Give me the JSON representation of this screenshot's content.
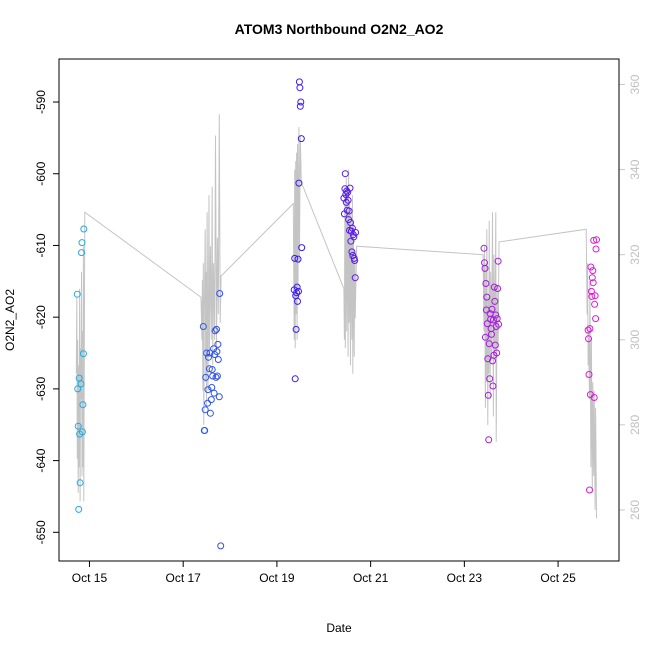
{
  "chart_data": {
    "type": "scatter",
    "title": "ATOM3 Northbound O2N2_AO2",
    "xlabel": "Date",
    "ylabel": "O2N2_AO2",
    "ylabel_right": "",
    "x_tick_labels": [
      "Oct 15",
      "Oct 17",
      "Oct 19",
      "Oct 21",
      "Oct 23",
      "Oct 25"
    ],
    "x_tick_days": [
      15,
      17,
      19,
      21,
      23,
      25
    ],
    "xlim_days": [
      14.35,
      26.3
    ],
    "y_ticks": [
      -590,
      -600,
      -610,
      -620,
      -630,
      -640,
      -650
    ],
    "ylim": [
      -654,
      -584
    ],
    "y2_ticks": [
      260,
      280,
      300,
      320,
      340,
      360
    ],
    "y2lim": [
      248,
      366
    ],
    "colors": {
      "points_start": "#1fb0e6",
      "points_mid": "#3a1cf0",
      "points_end": "#e21ad8",
      "secondary_line": "#c4c4c4",
      "secondary_axis": "#c8c8c8"
    },
    "series": [
      {
        "name": "O2N2_AO2",
        "axis": "left",
        "kind": "points",
        "points": [
          [
            14.74,
            -616.8
          ],
          [
            14.75,
            -630.0
          ],
          [
            14.76,
            -635.2
          ],
          [
            14.77,
            -646.8
          ],
          [
            14.78,
            -628.5
          ],
          [
            14.79,
            -636.3
          ],
          [
            14.8,
            -643.1
          ],
          [
            14.82,
            -629.3
          ],
          [
            14.83,
            -611.0
          ],
          [
            14.84,
            -609.6
          ],
          [
            14.85,
            -636.0
          ],
          [
            14.86,
            -632.2
          ],
          [
            14.87,
            -625.1
          ],
          [
            14.88,
            -607.7
          ],
          [
            17.43,
            -621.3
          ],
          [
            17.45,
            -635.8
          ],
          [
            17.46,
            -635.8
          ],
          [
            17.47,
            -632.9
          ],
          [
            17.48,
            -628.4
          ],
          [
            17.5,
            -625.0
          ],
          [
            17.52,
            -632.0
          ],
          [
            17.53,
            -630.1
          ],
          [
            17.54,
            -625.6
          ],
          [
            17.56,
            -627.2
          ],
          [
            17.57,
            -625.0
          ],
          [
            17.58,
            -633.4
          ],
          [
            17.6,
            -631.5
          ],
          [
            17.61,
            -629.8
          ],
          [
            17.62,
            -627.3
          ],
          [
            17.63,
            -628.2
          ],
          [
            17.65,
            -624.4
          ],
          [
            17.66,
            -630.6
          ],
          [
            17.67,
            -625.2
          ],
          [
            17.68,
            -621.9
          ],
          [
            17.7,
            -628.4
          ],
          [
            17.71,
            -621.7
          ],
          [
            17.72,
            -624.8
          ],
          [
            17.73,
            -628.2
          ],
          [
            17.74,
            -623.8
          ],
          [
            17.75,
            -625.9
          ],
          [
            17.77,
            -631.1
          ],
          [
            17.78,
            -616.7
          ],
          [
            17.8,
            -651.9
          ],
          [
            19.37,
            -616.2
          ],
          [
            19.38,
            -611.8
          ],
          [
            19.39,
            -628.6
          ],
          [
            19.4,
            -617.0
          ],
          [
            19.41,
            -621.7
          ],
          [
            19.42,
            -616.6
          ],
          [
            19.43,
            -615.8
          ],
          [
            19.44,
            -617.8
          ],
          [
            19.45,
            -611.9
          ],
          [
            19.46,
            -616.4
          ],
          [
            19.47,
            -601.3
          ],
          [
            19.48,
            -587.2
          ],
          [
            19.49,
            -588.0
          ],
          [
            19.5,
            -590.6
          ],
          [
            19.51,
            -590.0
          ],
          [
            19.52,
            -595.1
          ],
          [
            19.53,
            -610.3
          ],
          [
            20.43,
            -603.4
          ],
          [
            20.44,
            -605.6
          ],
          [
            20.45,
            -602.1
          ],
          [
            20.46,
            -600.0
          ],
          [
            20.47,
            -602.9
          ],
          [
            20.48,
            -604.0
          ],
          [
            20.49,
            -602.4
          ],
          [
            20.5,
            -605.1
          ],
          [
            20.51,
            -602.6
          ],
          [
            20.52,
            -603.7
          ],
          [
            20.53,
            -606.4
          ],
          [
            20.54,
            -605.2
          ],
          [
            20.55,
            -607.9
          ],
          [
            20.56,
            -602.0
          ],
          [
            20.57,
            -606.8
          ],
          [
            20.58,
            -609.4
          ],
          [
            20.59,
            -608.0
          ],
          [
            20.6,
            -610.9
          ],
          [
            20.61,
            -607.6
          ],
          [
            20.62,
            -611.4
          ],
          [
            20.63,
            -608.5
          ],
          [
            20.64,
            -608.8
          ],
          [
            20.65,
            -611.8
          ],
          [
            20.66,
            -612.1
          ],
          [
            20.67,
            -614.5
          ],
          [
            20.68,
            -608.2
          ],
          [
            23.42,
            -610.4
          ],
          [
            23.43,
            -612.4
          ],
          [
            23.44,
            -613.2
          ],
          [
            23.45,
            -622.8
          ],
          [
            23.46,
            -615.3
          ],
          [
            23.47,
            -619.0
          ],
          [
            23.48,
            -617.2
          ],
          [
            23.49,
            -620.9
          ],
          [
            23.5,
            -625.8
          ],
          [
            23.51,
            -630.9
          ],
          [
            23.52,
            -637.1
          ],
          [
            23.53,
            -623.7
          ],
          [
            23.54,
            -628.6
          ],
          [
            23.55,
            -619.5
          ],
          [
            23.56,
            -620.3
          ],
          [
            23.57,
            -621.6
          ],
          [
            23.58,
            -622.4
          ],
          [
            23.59,
            -618.9
          ],
          [
            23.6,
            -626.1
          ],
          [
            23.61,
            -629.6
          ],
          [
            23.62,
            -620.4
          ],
          [
            23.63,
            -625.3
          ],
          [
            23.64,
            -615.8
          ],
          [
            23.65,
            -617.8
          ],
          [
            23.66,
            -623.9
          ],
          [
            23.67,
            -619.7
          ],
          [
            23.68,
            -621.3
          ],
          [
            23.69,
            -625.0
          ],
          [
            23.7,
            -620.2
          ],
          [
            23.71,
            -616.0
          ],
          [
            23.72,
            -612.2
          ],
          [
            23.73,
            -621.0
          ],
          [
            25.64,
            -621.8
          ],
          [
            25.65,
            -623.0
          ],
          [
            25.66,
            -628.0
          ],
          [
            25.67,
            -644.1
          ],
          [
            25.68,
            -621.6
          ],
          [
            25.69,
            -630.8
          ],
          [
            25.7,
            -613.0
          ],
          [
            25.71,
            -616.4
          ],
          [
            25.72,
            -617.1
          ],
          [
            25.73,
            -614.5
          ],
          [
            25.74,
            -613.5
          ],
          [
            25.75,
            -615.2
          ],
          [
            25.76,
            -609.3
          ],
          [
            25.77,
            -631.2
          ],
          [
            25.78,
            -618.2
          ],
          [
            25.79,
            -617.0
          ],
          [
            25.8,
            -620.2
          ],
          [
            25.81,
            -610.5
          ],
          [
            25.82,
            -609.2
          ]
        ]
      },
      {
        "name": "secondary (gray, right axis)",
        "axis": "right",
        "kind": "line",
        "points": [
          [
            14.72,
            292
          ],
          [
            14.73,
            310
          ],
          [
            14.74,
            272
          ],
          [
            14.75,
            300
          ],
          [
            14.76,
            264
          ],
          [
            14.77,
            294
          ],
          [
            14.78,
            270
          ],
          [
            14.79,
            312
          ],
          [
            14.8,
            262
          ],
          [
            14.81,
            298
          ],
          [
            14.82,
            286
          ],
          [
            14.83,
            316
          ],
          [
            14.84,
            268
          ],
          [
            14.85,
            302
          ],
          [
            14.86,
            270
          ],
          [
            14.87,
            322
          ],
          [
            14.88,
            262
          ],
          [
            14.9,
            330
          ],
          [
            17.38,
            310
          ],
          [
            17.4,
            300
          ],
          [
            17.41,
            314
          ],
          [
            17.42,
            288
          ],
          [
            17.43,
            318
          ],
          [
            17.44,
            280
          ],
          [
            17.45,
            306
          ],
          [
            17.47,
            326
          ],
          [
            17.48,
            290
          ],
          [
            17.49,
            316
          ],
          [
            17.5,
            284
          ],
          [
            17.51,
            330
          ],
          [
            17.53,
            288
          ],
          [
            17.55,
            334
          ],
          [
            17.56,
            296
          ],
          [
            17.58,
            322
          ],
          [
            17.6,
            300
          ],
          [
            17.62,
            336
          ],
          [
            17.63,
            294
          ],
          [
            17.65,
            318
          ],
          [
            17.67,
            300
          ],
          [
            17.69,
            348
          ],
          [
            17.71,
            298
          ],
          [
            17.73,
            324
          ],
          [
            17.75,
            306
          ],
          [
            17.77,
            353
          ],
          [
            17.79,
            304
          ],
          [
            17.81,
            315
          ],
          [
            19.35,
            332
          ],
          [
            19.37,
            300
          ],
          [
            19.38,
            340
          ],
          [
            19.39,
            298
          ],
          [
            19.4,
            342
          ],
          [
            19.41,
            306
          ],
          [
            19.42,
            344
          ],
          [
            19.43,
            300
          ],
          [
            19.44,
            346
          ],
          [
            19.45,
            312
          ],
          [
            19.47,
            350
          ],
          [
            19.48,
            318
          ],
          [
            19.5,
            348
          ],
          [
            19.52,
            337
          ],
          [
            20.43,
            312
          ],
          [
            20.44,
            300
          ],
          [
            20.45,
            334
          ],
          [
            20.46,
            298
          ],
          [
            20.48,
            338
          ],
          [
            20.49,
            302
          ],
          [
            20.5,
            336
          ],
          [
            20.52,
            296
          ],
          [
            20.53,
            340
          ],
          [
            20.54,
            304
          ],
          [
            20.55,
            332
          ],
          [
            20.57,
            294
          ],
          [
            20.58,
            330
          ],
          [
            20.6,
            300
          ],
          [
            20.61,
            334
          ],
          [
            20.62,
            292
          ],
          [
            20.63,
            328
          ],
          [
            20.65,
            296
          ],
          [
            20.66,
            320
          ],
          [
            20.67,
            305
          ],
          [
            20.7,
            322
          ],
          [
            23.4,
            320
          ],
          [
            23.42,
            302
          ],
          [
            23.43,
            322
          ],
          [
            23.45,
            284
          ],
          [
            23.46,
            318
          ],
          [
            23.47,
            290
          ],
          [
            23.48,
            326
          ],
          [
            23.5,
            280
          ],
          [
            23.51,
            310
          ],
          [
            23.52,
            292
          ],
          [
            23.53,
            328
          ],
          [
            23.55,
            286
          ],
          [
            23.56,
            316
          ],
          [
            23.58,
            296
          ],
          [
            23.6,
            330
          ],
          [
            23.62,
            282
          ],
          [
            23.63,
            320
          ],
          [
            23.65,
            296
          ],
          [
            23.67,
            330
          ],
          [
            23.68,
            276
          ],
          [
            23.7,
            312
          ],
          [
            23.72,
            298
          ],
          [
            23.74,
            323
          ],
          [
            25.6,
            326
          ],
          [
            25.62,
            306
          ],
          [
            25.63,
            318
          ],
          [
            25.64,
            294
          ],
          [
            25.65,
            302
          ],
          [
            25.67,
            286
          ],
          [
            25.68,
            314
          ],
          [
            25.7,
            270
          ],
          [
            25.71,
            300
          ],
          [
            25.73,
            264
          ],
          [
            25.74,
            290
          ],
          [
            25.76,
            268
          ],
          [
            25.77,
            288
          ],
          [
            25.79,
            260
          ],
          [
            25.8,
            284
          ],
          [
            25.82,
            258
          ]
        ]
      }
    ]
  }
}
